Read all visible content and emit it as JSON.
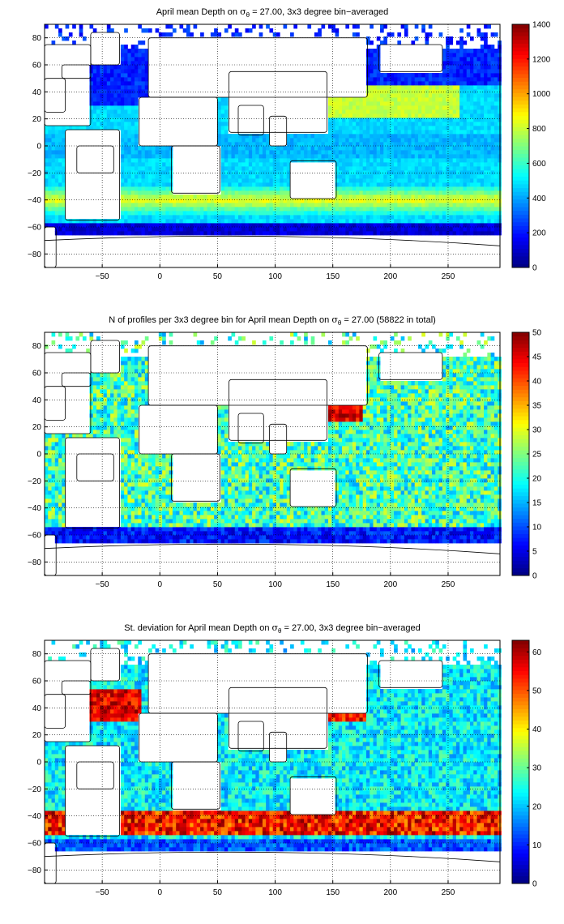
{
  "chart_data": [
    {
      "type": "heatmap",
      "title": {
        "prefix": "April mean Depth on ",
        "sym": "σ",
        "sub": "θ",
        "suffix": " = 27.00, 3x3 degree bin−averaged"
      },
      "xticks": [
        "−50",
        "0",
        "50",
        "100",
        "150",
        "200",
        "250"
      ],
      "xtick_values": [
        -50,
        0,
        50,
        100,
        150,
        200,
        250
      ],
      "yticks": [
        "80",
        "60",
        "40",
        "20",
        "0",
        "−20",
        "−40",
        "−60",
        "−80"
      ],
      "ytick_values": [
        80,
        60,
        40,
        20,
        0,
        -20,
        -40,
        -60,
        -80
      ],
      "xlim": [
        -100,
        295
      ],
      "ylim": [
        -90,
        90
      ],
      "colorbar": {
        "min": 0,
        "max": 1400,
        "ticks": [
          0,
          200,
          400,
          600,
          800,
          1000,
          1200,
          1400
        ],
        "labels": [
          "0",
          "200",
          "400",
          "600",
          "800",
          "1000",
          "1200",
          "1400"
        ]
      },
      "grid": true,
      "colormap": "jet",
      "mode": "depth"
    },
    {
      "type": "heatmap",
      "title": {
        "prefix": "N of profiles per 3x3 degree bin for April mean Depth on ",
        "sym": "σ",
        "sub": "θ",
        "suffix": " = 27.00 (58822 in total)"
      },
      "xticks": [
        "−50",
        "0",
        "50",
        "100",
        "150",
        "200",
        "250"
      ],
      "xtick_values": [
        -50,
        0,
        50,
        100,
        150,
        200,
        250
      ],
      "yticks": [
        "80",
        "60",
        "40",
        "20",
        "0",
        "−20",
        "−40",
        "−60",
        "−80"
      ],
      "ytick_values": [
        80,
        60,
        40,
        20,
        0,
        -20,
        -40,
        -60,
        -80
      ],
      "xlim": [
        -100,
        295
      ],
      "ylim": [
        -90,
        90
      ],
      "colorbar": {
        "min": 0,
        "max": 50,
        "ticks": [
          0,
          5,
          10,
          15,
          20,
          25,
          30,
          35,
          40,
          45,
          50
        ],
        "labels": [
          "0",
          "5",
          "10",
          "15",
          "20",
          "25",
          "30",
          "35",
          "40",
          "45",
          "50"
        ]
      },
      "grid": true,
      "colormap": "jet",
      "mode": "count"
    },
    {
      "type": "heatmap",
      "title": {
        "prefix": "St. deviation for April mean Depth on ",
        "sym": "σ",
        "sub": "θ",
        "suffix": " = 27.00, 3x3 degree bin−averaged"
      },
      "xticks": [
        "−50",
        "0",
        "50",
        "100",
        "150",
        "200",
        "250"
      ],
      "xtick_values": [
        -50,
        0,
        50,
        100,
        150,
        200,
        250
      ],
      "yticks": [
        "80",
        "60",
        "40",
        "20",
        "0",
        "−20",
        "−40",
        "−60",
        "−80"
      ],
      "ytick_values": [
        80,
        60,
        40,
        20,
        0,
        -20,
        -40,
        -60,
        -80
      ],
      "xlim": [
        -100,
        295
      ],
      "ylim": [
        -90,
        90
      ],
      "colorbar": {
        "min": 0,
        "max": 63,
        "ticks": [
          0,
          10,
          20,
          30,
          40,
          50,
          60
        ],
        "labels": [
          "0",
          "10",
          "20",
          "30",
          "40",
          "50",
          "60"
        ]
      },
      "grid": true,
      "colormap": "jet",
      "mode": "std"
    }
  ]
}
